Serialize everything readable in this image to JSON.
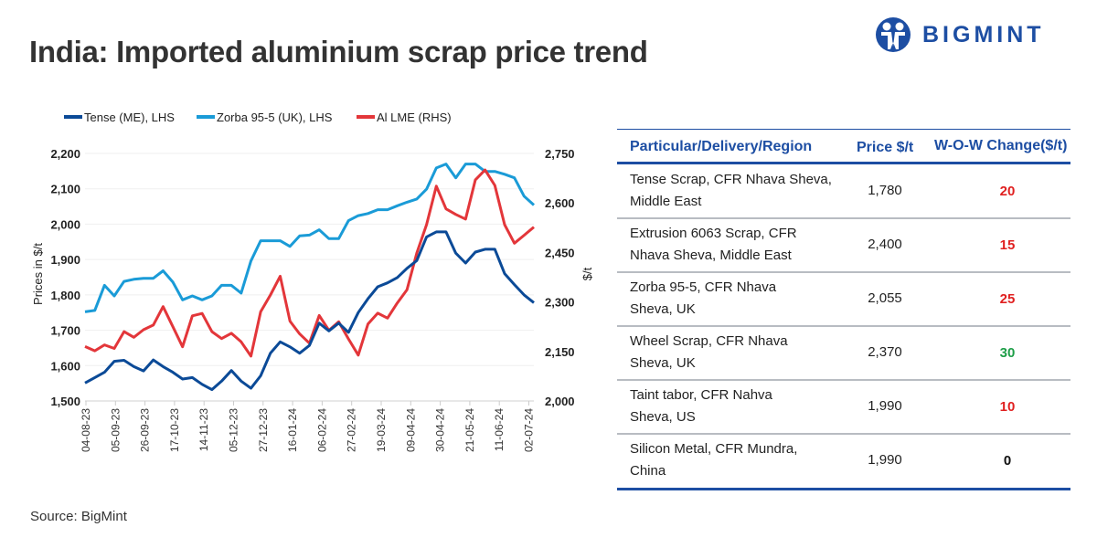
{
  "title": "India: Imported aluminium scrap price trend",
  "logo": {
    "text": "BIGMINT",
    "color": "#1d4ea3"
  },
  "source": "Source: BigMint",
  "chart_data": {
    "type": "line",
    "title": "",
    "ylabel_left": "Prices in $/t",
    "ylabel_right": "$/t",
    "ylim_left": [
      1500,
      2200
    ],
    "yticks_left": [
      "1,500",
      "1,600",
      "1,700",
      "1,800",
      "1,900",
      "2,000",
      "2,100",
      "2,200"
    ],
    "ylim_right": [
      2000,
      2750
    ],
    "yticks_right": [
      "2,000",
      "2,150",
      "2,300",
      "2,450",
      "2,600",
      "2,750"
    ],
    "xtick_labels": [
      "04-08-23",
      "05-09-23",
      "26-09-23",
      "17-10-23",
      "14-11-23",
      "05-12-23",
      "27-12-23",
      "16-01-24",
      "06-02-24",
      "27-02-24",
      "19-03-24",
      "09-04-24",
      "30-04-24",
      "21-05-24",
      "11-06-24",
      "02-07-24"
    ],
    "grid": "horizontal",
    "legend_position": "top-left",
    "series": [
      {
        "name": "Tense (ME), LHS",
        "axis": "left",
        "color": "#0b4a97",
        "values": [
          1551,
          1566,
          1581,
          1612,
          1615,
          1597,
          1585,
          1616,
          1597,
          1581,
          1562,
          1566,
          1547,
          1532,
          1556,
          1586,
          1556,
          1536,
          1571,
          1635,
          1667,
          1653,
          1635,
          1657,
          1720,
          1698,
          1720,
          1694,
          1750,
          1789,
          1823,
          1834,
          1849,
          1875,
          1897,
          1964,
          1978,
          1978,
          1918,
          1890,
          1921,
          1929,
          1929,
          1860,
          1829,
          1800,
          1778
        ]
      },
      {
        "name": "Zorba 95-5 (UK), LHS",
        "axis": "left",
        "color": "#1a9bd7",
        "values": [
          1752,
          1756,
          1827,
          1797,
          1838,
          1844,
          1847,
          1847,
          1868,
          1836,
          1786,
          1797,
          1786,
          1797,
          1827,
          1827,
          1805,
          1896,
          1953,
          1953,
          1953,
          1937,
          1967,
          1969,
          1984,
          1959,
          1959,
          2010,
          2024,
          2030,
          2041,
          2041,
          2052,
          2062,
          2071,
          2099,
          2159,
          2170,
          2131,
          2170,
          2170,
          2149,
          2149,
          2141,
          2131,
          2079,
          2054
        ]
      },
      {
        "name": "Al LME (RHS)",
        "axis": "right",
        "color": "#e3363a",
        "values": [
          2165,
          2152,
          2170,
          2159,
          2210,
          2193,
          2216,
          2230,
          2286,
          2225,
          2164,
          2258,
          2265,
          2210,
          2189,
          2205,
          2179,
          2136,
          2270,
          2321,
          2378,
          2242,
          2203,
          2175,
          2259,
          2214,
          2240,
          2188,
          2139,
          2233,
          2266,
          2251,
          2297,
          2337,
          2448,
          2534,
          2651,
          2582,
          2565,
          2551,
          2670,
          2700,
          2653,
          2534,
          2478,
          2502,
          2527
        ]
      }
    ]
  },
  "table": {
    "headers": [
      "Particular/Delivery/Region",
      "Price $/t",
      "W-O-W Change($/t)"
    ],
    "rows": [
      {
        "line1": "Tense Scrap, CFR Nhava Sheva,",
        "line2": "Middle East",
        "price": "1,780",
        "change": "20",
        "change_color": "#e02020"
      },
      {
        "line1": "Extrusion 6063 Scrap, CFR",
        "line2": "Nhava Sheva, Middle East",
        "price": "2,400",
        "change": "15",
        "change_color": "#e02020"
      },
      {
        "line1": "Zorba 95-5, CFR Nhava",
        "line2": "Sheva, UK",
        "price": "2,055",
        "change": "25",
        "change_color": "#e02020"
      },
      {
        "line1": "Wheel Scrap, CFR Nhava",
        "line2": "Sheva, UK",
        "price": "2,370",
        "change": "30",
        "change_color": "#1e9e48"
      },
      {
        "line1": "Taint tabor, CFR Nahva",
        "line2": "Sheva, US",
        "price": "1,990",
        "change": "10",
        "change_color": "#e02020"
      },
      {
        "line1": "Silicon Metal, CFR Mundra,",
        "line2": "China",
        "price": "1,990",
        "change": "0",
        "change_color": "#111111"
      }
    ]
  }
}
